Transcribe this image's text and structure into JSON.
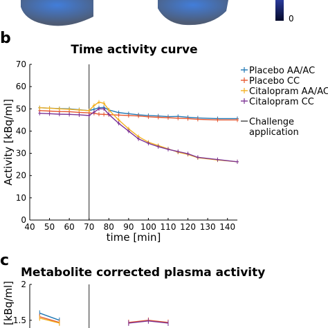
{
  "colorbar": {
    "min_label": "0"
  },
  "panel_b": {
    "letter": "b",
    "chart_data": {
      "type": "line",
      "title": "Time activity curve",
      "xlabel": "time [min]",
      "ylabel": "Activity [kBq/ml]",
      "xlim": [
        40,
        145
      ],
      "ylim": [
        0,
        70
      ],
      "xticks": [
        40,
        50,
        60,
        70,
        80,
        90,
        100,
        110,
        120,
        130,
        140
      ],
      "yticks": [
        0,
        10,
        20,
        30,
        40,
        50,
        60,
        70
      ],
      "grid": false,
      "legend_position": "right",
      "vline": {
        "x": 70,
        "label_lines": [
          "Challenge",
          "application"
        ]
      },
      "series": [
        {
          "name": "Placebo AA/AC",
          "color": "#1f77b4",
          "x": [
            45,
            50,
            55,
            60,
            65,
            70,
            72.5,
            75,
            77.5,
            80,
            85,
            90,
            95,
            100,
            105,
            110,
            115,
            120,
            125,
            135,
            145
          ],
          "y": [
            50.5,
            50.3,
            50.1,
            50,
            49.6,
            49.2,
            49.8,
            50.5,
            50.6,
            49.5,
            48.3,
            47.8,
            47.3,
            47,
            46.8,
            46.5,
            46.6,
            46.2,
            45.9,
            45.6,
            45.6
          ]
        },
        {
          "name": "Placebo CC",
          "color": "#e6552d",
          "x": [
            45,
            50,
            55,
            60,
            65,
            70,
            72.5,
            75,
            77.5,
            80,
            85,
            90,
            95,
            100,
            105,
            110,
            115,
            120,
            125,
            135,
            145
          ],
          "y": [
            49.2,
            49,
            48.8,
            48.7,
            48.4,
            48.2,
            48,
            47.6,
            47.5,
            47.4,
            47.2,
            47,
            46.8,
            46.4,
            46.2,
            46,
            45.8,
            45.6,
            45.3,
            45,
            45
          ]
        },
        {
          "name": "Citalopram AA/AC",
          "color": "#f2b01e",
          "x": [
            45,
            50,
            55,
            60,
            65,
            70,
            72.5,
            75,
            77.5,
            80,
            85,
            90,
            95,
            100,
            105,
            110,
            115,
            120,
            125,
            135,
            145
          ],
          "y": [
            50.5,
            50.3,
            50,
            49.8,
            49.5,
            49.2,
            51.5,
            53,
            52.5,
            49.5,
            45,
            41,
            37.5,
            35,
            33.5,
            32,
            30.5,
            29.5,
            28,
            27,
            26.2
          ]
        },
        {
          "name": "Citalopram CC",
          "color": "#7b3294",
          "x": [
            45,
            50,
            55,
            60,
            65,
            70,
            72.5,
            75,
            77.5,
            80,
            85,
            90,
            95,
            100,
            105,
            110,
            115,
            120,
            125,
            135,
            145
          ],
          "y": [
            48,
            47.8,
            47.6,
            47.5,
            47.3,
            47,
            48.5,
            50,
            50,
            47.5,
            43.5,
            40,
            36.5,
            34.5,
            33,
            31.8,
            30.8,
            29.8,
            28.2,
            27.2,
            26.2
          ]
        }
      ]
    }
  },
  "panel_c": {
    "letter": "c",
    "chart_data": {
      "type": "line",
      "title": "Metabolite corrected plasma activity",
      "ylabel": "[kBq/ml]",
      "yticks_visible": [
        2,
        1.5
      ],
      "ylim_visible": [
        1.45,
        2.0
      ],
      "vline": {
        "x": 70
      },
      "series": [
        {
          "name": "",
          "color": "#1f77b4",
          "x": [
            45,
            55
          ],
          "y": [
            1.6,
            1.5
          ]
        },
        {
          "name": "",
          "color": "#e6552d",
          "x": [
            45,
            55
          ],
          "y": [
            1.55,
            1.47
          ]
        },
        {
          "name": "",
          "color": "#f2b01e",
          "x": [
            45,
            55
          ],
          "y": [
            1.53,
            1.46
          ]
        },
        {
          "name": "",
          "color": "#e6552d",
          "x": [
            90,
            100,
            110
          ],
          "y": [
            1.47,
            1.5,
            1.47
          ]
        },
        {
          "name": "",
          "color": "#7b3294",
          "x": [
            90,
            100,
            110
          ],
          "y": [
            1.46,
            1.49,
            1.46
          ]
        }
      ]
    }
  }
}
